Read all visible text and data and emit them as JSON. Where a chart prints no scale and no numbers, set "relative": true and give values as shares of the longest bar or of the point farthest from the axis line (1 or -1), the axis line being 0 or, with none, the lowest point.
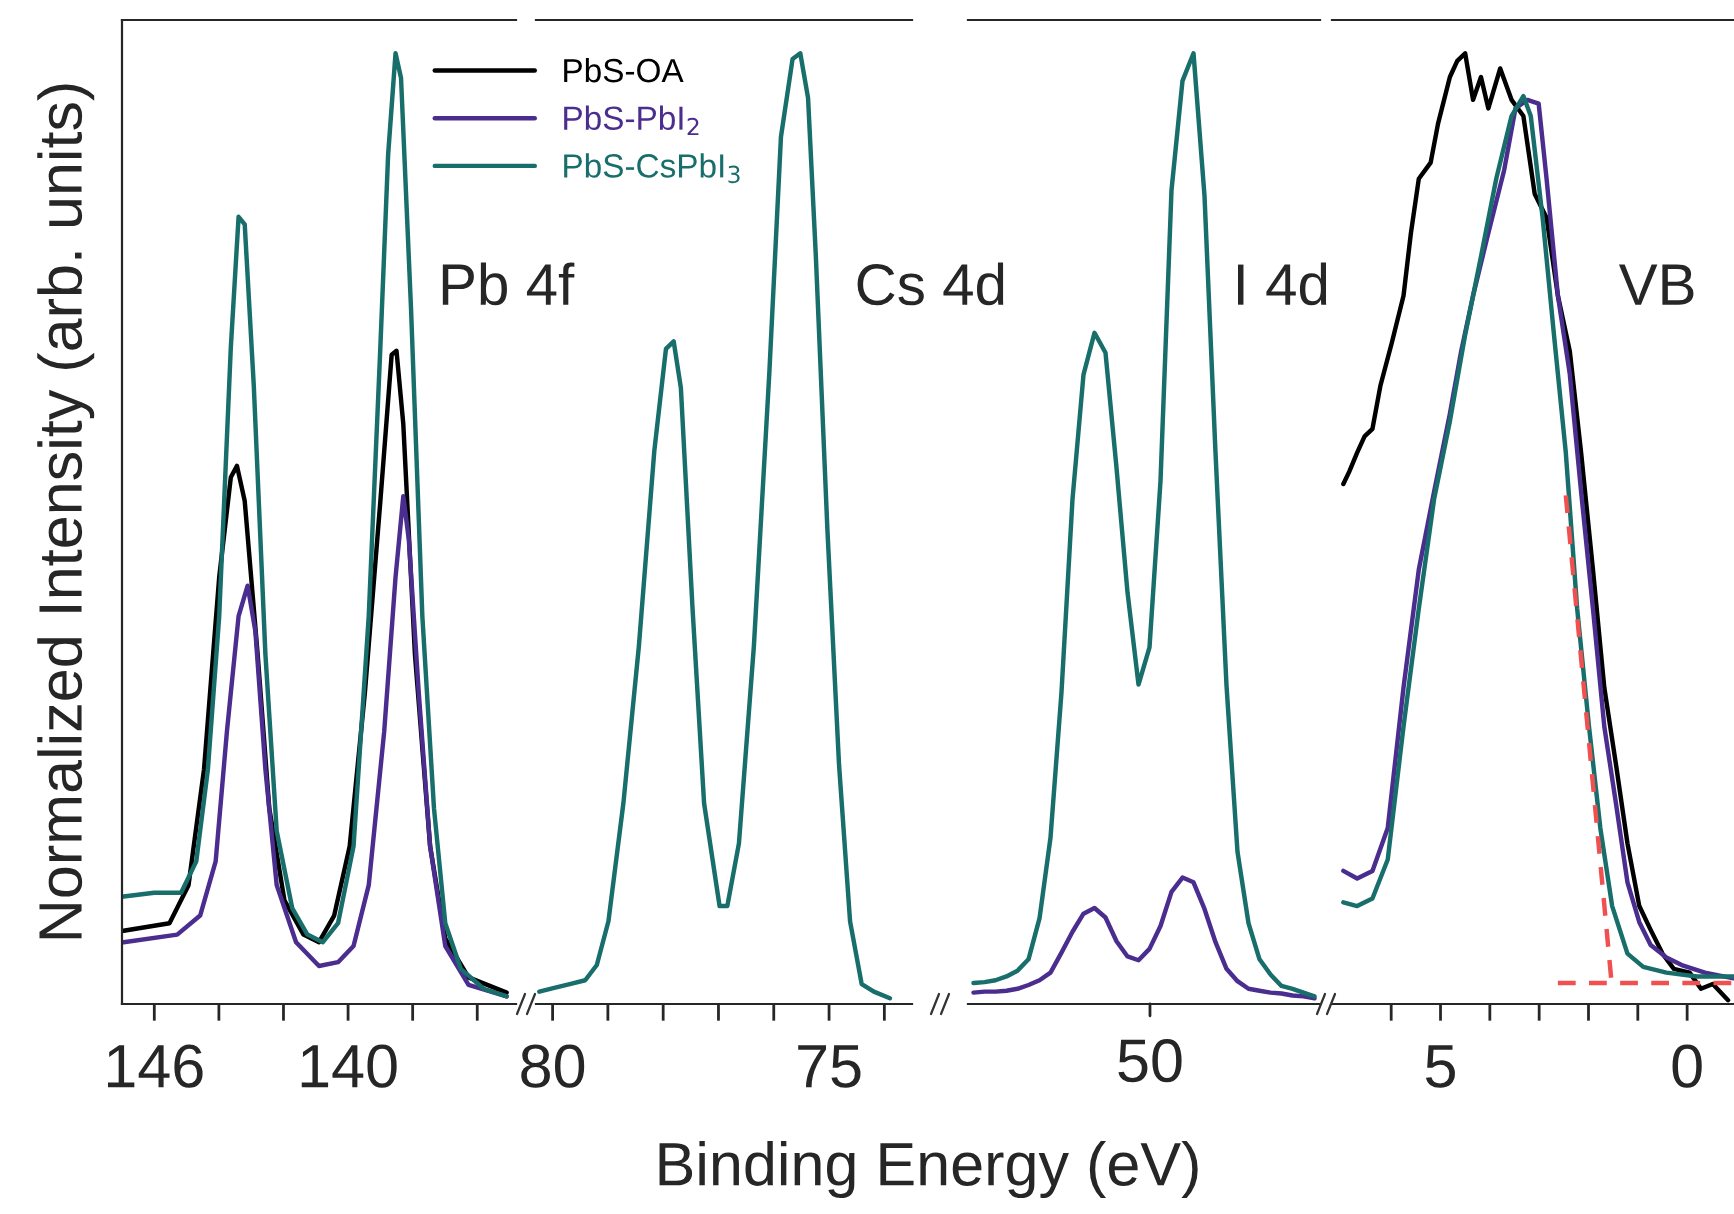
{
  "chart_data": [
    {
      "type": "line",
      "relative": true,
      "ylabel": "Normalized Intensity (arb. units)",
      "xlabel": "Binding Energy (eV)",
      "annotations": [
        "Pb 4f"
      ],
      "legend": "top right",
      "grid": false,
      "tick_labels": "x",
      "line_style": "solid",
      "marker": "none",
      "xlim": [
        147.0,
        134.8
      ],
      "xticks": [
        146,
        {
          "value": 144,
          "label": null
        },
        {
          "value": 142,
          "label": null
        },
        140,
        {
          "value": 138,
          "label": null
        },
        {
          "value": 136,
          "label": null
        }
      ],
      "series": [
        {
          "name": "PbS-OA",
          "color": "#000000",
          "x": [
            146.95,
            145.53,
            144.94,
            144.46,
            143.99,
            143.63,
            143.44,
            143.2,
            142.8,
            142.44,
            141.97,
            141.38,
            140.9,
            140.43,
            139.95,
            139.48,
            139.0,
            138.65,
            138.5,
            138.29,
            137.93,
            137.46,
            136.99,
            136.27,
            135.09
          ],
          "values": [
            0.077,
            0.085,
            0.125,
            0.247,
            0.449,
            0.554,
            0.566,
            0.529,
            0.368,
            0.206,
            0.109,
            0.073,
            0.065,
            0.093,
            0.166,
            0.327,
            0.529,
            0.683,
            0.687,
            0.61,
            0.368,
            0.166,
            0.069,
            0.028,
            0.012
          ]
        },
        {
          "name": "PbS-PbI$_{2}$",
          "color": "#4b2d8f",
          "x": [
            146.95,
            145.29,
            144.58,
            144.1,
            143.75,
            143.39,
            143.11,
            142.87,
            142.56,
            142.21,
            141.61,
            140.9,
            140.31,
            139.83,
            139.36,
            138.88,
            138.53,
            138.29,
            138.12,
            137.81,
            137.46,
            136.99,
            136.27,
            135.09
          ],
          "values": [
            0.065,
            0.073,
            0.093,
            0.15,
            0.287,
            0.408,
            0.44,
            0.392,
            0.247,
            0.125,
            0.065,
            0.04,
            0.044,
            0.061,
            0.125,
            0.287,
            0.449,
            0.534,
            0.489,
            0.327,
            0.166,
            0.061,
            0.02,
            0.008
          ]
        },
        {
          "name": "PbS-CsPbI$_{3}$",
          "color": "#176e6a",
          "x": [
            146.95,
            146.0,
            145.17,
            144.7,
            144.34,
            143.99,
            143.63,
            143.39,
            143.2,
            142.92,
            142.56,
            142.21,
            141.73,
            141.26,
            140.78,
            140.31,
            139.83,
            139.36,
            139.0,
            138.76,
            138.53,
            138.36,
            138.05,
            137.7,
            137.34,
            136.99,
            136.51,
            135.8,
            135.09
          ],
          "values": [
            0.113,
            0.117,
            0.117,
            0.15,
            0.247,
            0.408,
            0.691,
            0.828,
            0.82,
            0.651,
            0.368,
            0.182,
            0.101,
            0.073,
            0.065,
            0.085,
            0.166,
            0.408,
            0.691,
            0.893,
            1.0,
            0.974,
            0.731,
            0.408,
            0.206,
            0.085,
            0.037,
            0.016,
            0.008
          ]
        }
      ]
    },
    {
      "type": "line",
      "relative": true,
      "annotations": [
        "Cs 4d"
      ],
      "grid": false,
      "tick_labels": "x",
      "line_style": "solid",
      "marker": "none",
      "xlim": [
        80.3,
        73.5
      ],
      "xticks": [
        80,
        {
          "value": 79,
          "label": null
        },
        {
          "value": 78,
          "label": null
        },
        {
          "value": 77,
          "label": null
        },
        {
          "value": 76,
          "label": null
        },
        75,
        {
          "value": 74,
          "label": null
        }
      ],
      "series": [
        {
          "color": "#176e6a",
          "x": [
            80.24,
            79.97,
            79.69,
            79.41,
            79.2,
            78.99,
            78.72,
            78.44,
            78.16,
            77.95,
            77.81,
            77.68,
            77.47,
            77.26,
            76.98,
            76.84,
            76.63,
            76.36,
            76.08,
            75.87,
            75.66,
            75.52,
            75.38,
            75.24,
            75.03,
            74.82,
            74.62,
            74.41,
            74.19,
            73.9
          ],
          "values": [
            0.013,
            0.017,
            0.021,
            0.025,
            0.041,
            0.087,
            0.211,
            0.376,
            0.582,
            0.689,
            0.697,
            0.648,
            0.417,
            0.211,
            0.103,
            0.103,
            0.169,
            0.376,
            0.664,
            0.912,
            0.994,
            1.0,
            0.953,
            0.788,
            0.499,
            0.252,
            0.087,
            0.021,
            0.013,
            0.006
          ]
        }
      ]
    },
    {
      "type": "line",
      "relative": true,
      "annotations": [
        "I 4d",
        "50"
      ],
      "grid": false,
      "tick_labels": false,
      "line_style": "solid",
      "marker": "none",
      "categories": [
        null,
        null,
        null,
        null,
        null,
        null,
        null,
        null,
        null,
        null,
        null,
        null,
        null,
        null,
        null,
        null,
        null,
        null,
        null,
        null,
        null,
        null,
        null,
        null,
        null,
        null,
        null,
        null,
        null,
        null,
        null,
        null
      ],
      "series": [
        {
          "color": "#4b2d8f",
          "values": [
            0.012,
            0.013,
            0.013,
            0.014,
            0.016,
            0.02,
            0.025,
            0.033,
            0.054,
            0.076,
            0.095,
            0.101,
            0.091,
            0.066,
            0.05,
            0.046,
            0.058,
            0.082,
            0.118,
            0.133,
            0.128,
            0.1,
            0.065,
            0.037,
            0.024,
            0.016,
            0.014,
            0.012,
            0.011,
            0.009,
            0.008,
            0.006
          ]
        },
        {
          "color": "#176e6a",
          "values": [
            0.022,
            0.023,
            0.025,
            0.029,
            0.035,
            0.047,
            0.09,
            0.175,
            0.328,
            0.531,
            0.662,
            0.706,
            0.685,
            0.564,
            0.433,
            0.336,
            0.375,
            0.55,
            0.856,
            0.971,
            1.0,
            0.85,
            0.58,
            0.335,
            0.16,
            0.085,
            0.047,
            0.031,
            0.019,
            0.016,
            0.012,
            0.008
          ]
        }
      ]
    },
    {
      "type": "line",
      "relative": true,
      "annotations": [
        "VB"
      ],
      "grid": false,
      "tick_labels": "x",
      "line_style": "solid",
      "marker": "none",
      "xlim": [
        7.2,
        -0.95
      ],
      "xticks": [
        {
          "value": 6,
          "label": null
        },
        5,
        {
          "value": 4,
          "label": null
        },
        {
          "value": 3,
          "label": null
        },
        {
          "value": 2,
          "label": null
        },
        {
          "value": 1,
          "label": null
        },
        0
      ],
      "series": [
        {
          "color": "#000000",
          "x": [
            6.97,
            6.85,
            6.69,
            6.54,
            6.38,
            6.22,
            5.99,
            5.75,
            5.6,
            5.44,
            5.2,
            5.05,
            4.81,
            4.66,
            4.5,
            4.34,
            4.18,
            4.03,
            3.79,
            3.56,
            3.32,
            3.09,
            2.85,
            2.62,
            2.38,
            2.15,
            1.91,
            1.68,
            1.44,
            1.21,
            0.97,
            0.74,
            0.5,
            0.27,
            -0.05,
            -0.28,
            -0.52,
            -0.83
          ],
          "values": [
            0.547,
            0.56,
            0.58,
            0.597,
            0.605,
            0.65,
            0.695,
            0.745,
            0.811,
            0.868,
            0.885,
            0.926,
            0.975,
            0.992,
            1.0,
            0.951,
            0.975,
            0.942,
            0.984,
            0.951,
            0.934,
            0.852,
            0.827,
            0.745,
            0.687,
            0.58,
            0.457,
            0.333,
            0.251,
            0.169,
            0.103,
            0.078,
            0.053,
            0.037,
            0.033,
            0.016,
            0.021,
            0.004
          ]
        },
        {
          "color": "#4b2d8f",
          "x": [
            6.97,
            6.69,
            6.38,
            6.07,
            5.75,
            5.44,
            5.13,
            4.81,
            4.58,
            4.34,
            4.03,
            3.71,
            3.48,
            3.24,
            3.01,
            2.85,
            2.62,
            2.38,
            2.15,
            1.91,
            1.68,
            1.44,
            1.21,
            0.97,
            0.74,
            0.42,
            0.11,
            -0.36,
            -0.94
          ],
          "values": [
            0.14,
            0.132,
            0.14,
            0.185,
            0.333,
            0.457,
            0.539,
            0.621,
            0.687,
            0.745,
            0.811,
            0.877,
            0.942,
            0.951,
            0.947,
            0.868,
            0.745,
            0.663,
            0.539,
            0.416,
            0.292,
            0.21,
            0.128,
            0.086,
            0.062,
            0.049,
            0.041,
            0.033,
            0.027
          ]
        },
        {
          "color": "#176e6a",
          "x": [
            6.97,
            6.69,
            6.38,
            6.07,
            5.75,
            5.44,
            5.13,
            4.81,
            4.5,
            4.18,
            3.87,
            3.56,
            3.32,
            3.17,
            2.93,
            2.7,
            2.46,
            2.23,
            1.99,
            1.76,
            1.52,
            1.21,
            0.89,
            0.42,
            -0.2,
            -0.94
          ],
          "values": [
            0.107,
            0.103,
            0.111,
            0.152,
            0.292,
            0.416,
            0.531,
            0.613,
            0.704,
            0.786,
            0.868,
            0.934,
            0.955,
            0.934,
            0.827,
            0.704,
            0.58,
            0.416,
            0.292,
            0.185,
            0.103,
            0.053,
            0.039,
            0.033,
            0.029,
            0.029
          ]
        },
        {
          "type": "line",
          "color": "#f05050",
          "line_style": "dashed",
          "x": [
            2.46,
            1.52
          ],
          "values": [
            0.535,
            0.016
          ]
        },
        {
          "type": "line",
          "color": "#f05050",
          "line_style": "dashed",
          "x": [
            2.62,
            -0.94
          ],
          "values": [
            0.022,
            0.022
          ]
        }
      ]
    }
  ]
}
